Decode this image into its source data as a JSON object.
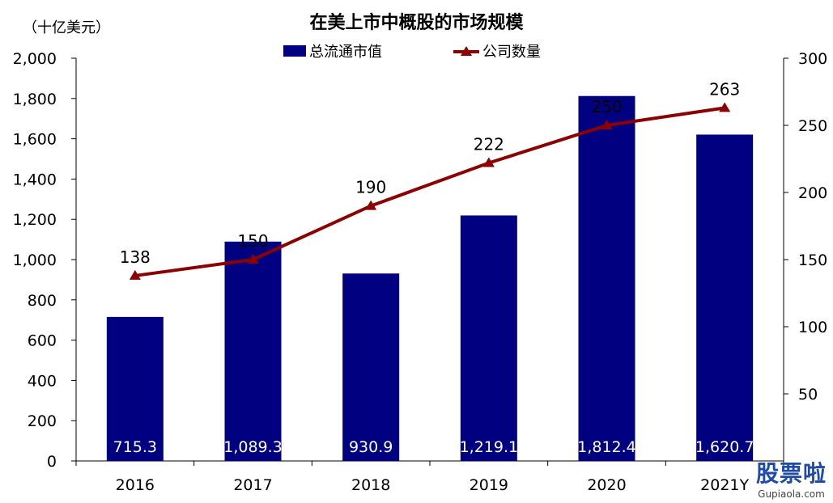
{
  "chart_data": {
    "type": "bar",
    "title": "在美上市中概股的市场规模",
    "unit_label": "（十亿美元）",
    "categories": [
      "2016",
      "2017",
      "2018",
      "2019",
      "2020",
      "2021Y"
    ],
    "series": [
      {
        "name": "总流通市值",
        "kind": "bar",
        "axis": "left",
        "color": "#000080",
        "values": [
          715.3,
          1089.3,
          930.9,
          1219.1,
          1812.4,
          1620.7
        ],
        "labels": [
          "715.3",
          "1,089.3",
          "930.9",
          "1,219.1",
          "1,812.4",
          "1,620.7"
        ]
      },
      {
        "name": "公司数量",
        "kind": "line",
        "axis": "right",
        "color": "#8b0000",
        "values": [
          138,
          150,
          190,
          222,
          250,
          263
        ],
        "labels": [
          "138",
          "150",
          "190",
          "222",
          "250",
          "263"
        ]
      }
    ],
    "y_left": {
      "ylim": [
        0,
        2000
      ],
      "ticks": [
        "0",
        "200",
        "400",
        "600",
        "800",
        "1,000",
        "1,200",
        "1,400",
        "1,600",
        "1,800",
        "2,000"
      ],
      "tick_values": [
        0,
        200,
        400,
        600,
        800,
        1000,
        1200,
        1400,
        1600,
        1800,
        2000
      ]
    },
    "y_right": {
      "ylim": [
        0,
        300
      ],
      "ticks": [
        "50",
        "100",
        "150",
        "200",
        "250",
        "300"
      ],
      "tick_values": [
        50,
        100,
        150,
        200,
        250,
        300
      ]
    },
    "legend_position": "top-center",
    "grid": false
  },
  "watermark": {
    "text": "股票啦",
    "sub": "Gupiaola.com"
  }
}
